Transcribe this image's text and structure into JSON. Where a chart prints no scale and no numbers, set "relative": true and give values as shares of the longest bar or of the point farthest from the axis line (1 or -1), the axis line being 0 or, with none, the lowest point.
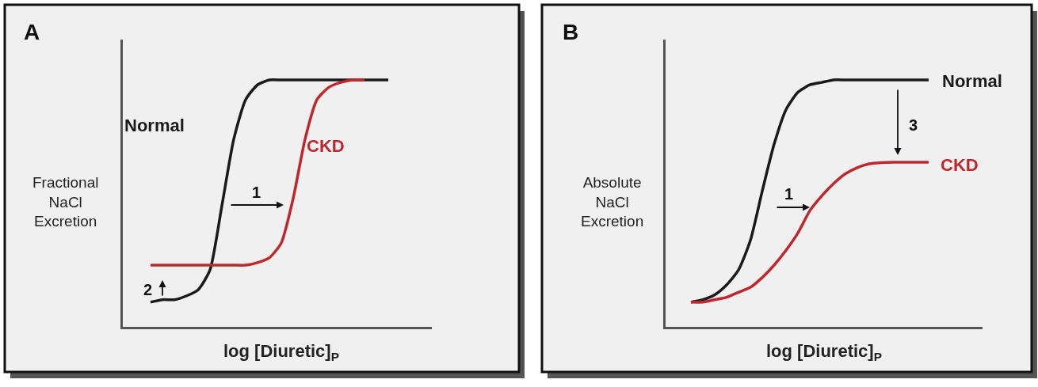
{
  "chart_data": [
    {
      "type": "line",
      "title": "A",
      "xlabel": "log [Diuretic]$_{P}$",
      "ylabel": "Fractional NaCl Excretion",
      "relative": true,
      "categories": [
        null,
        null,
        null,
        null,
        null,
        null,
        null,
        null,
        null,
        null,
        null,
        null,
        null,
        null,
        null,
        null,
        null,
        null,
        null,
        null,
        null
      ],
      "series": [
        {
          "name": "Normal",
          "color": "#1a1a1a",
          "values": [
            0.1,
            0.11,
            0.11,
            0.125,
            0.15,
            0.23,
            0.49,
            0.76,
            0.92,
            0.98,
            1,
            1,
            1,
            1,
            1,
            1,
            1,
            1,
            1,
            1,
            1
          ]
        },
        {
          "name": "CKD",
          "color": "#c0272d",
          "values": [
            0.25,
            0.25,
            0.25,
            0.25,
            0.25,
            0.25,
            0.25,
            0.25,
            0.25,
            0.26,
            0.28,
            0.34,
            0.52,
            0.76,
            0.92,
            0.97,
            0.99,
            1,
            1,
            null,
            null
          ]
        }
      ],
      "annotations": [
        "1",
        "2"
      ]
    },
    {
      "type": "line",
      "title": "B",
      "xlabel": "log [Diuretic]$_{P}$",
      "ylabel": "Absolute NaCl Excretion",
      "relative": true,
      "categories": [
        null,
        null,
        null,
        null,
        null,
        null,
        null,
        null,
        null,
        null,
        null,
        null,
        null,
        null,
        null,
        null,
        null,
        null,
        null,
        null,
        null
      ],
      "series": [
        {
          "name": "Normal",
          "color": "#1a1a1a",
          "values": [
            0.1,
            0.11,
            0.13,
            0.17,
            0.23,
            0.35,
            0.55,
            0.74,
            0.88,
            0.95,
            0.98,
            0.99,
            1,
            1,
            1,
            1,
            1,
            1,
            1,
            1,
            1
          ]
        },
        {
          "name": "CKD",
          "color": "#c0272d",
          "values": [
            0.1,
            0.1,
            0.11,
            0.12,
            0.14,
            0.16,
            0.2,
            0.25,
            0.31,
            0.38,
            0.47,
            0.53,
            0.58,
            0.62,
            0.645,
            0.66,
            0.665,
            0.667,
            0.667,
            0.667,
            0.667
          ]
        }
      ],
      "annotations": [
        "1",
        "3"
      ]
    }
  ]
}
